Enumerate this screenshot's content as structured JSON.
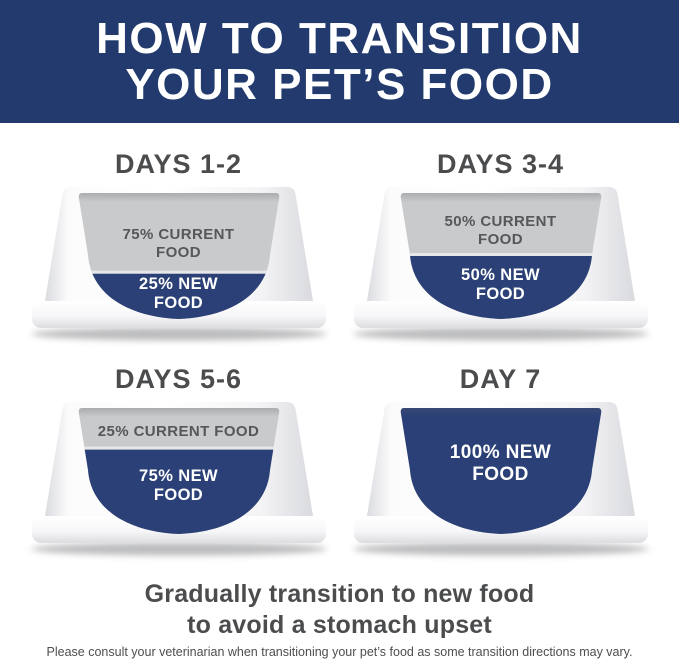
{
  "header": {
    "title_line1": "HOW TO TRANSITION",
    "title_line2": "YOUR PET’S FOOD"
  },
  "bowls": [
    {
      "title": "DAYS 1-2",
      "current_food_pct": 75,
      "new_food_pct": 25,
      "current_label": "75% CURRENT FOOD",
      "new_label": "25% NEW FOOD"
    },
    {
      "title": "DAYS 3-4",
      "current_food_pct": 50,
      "new_food_pct": 50,
      "current_label": "50% CURRENT FOOD",
      "new_label": "50% NEW FOOD"
    },
    {
      "title": "DAYS 5-6",
      "current_food_pct": 25,
      "new_food_pct": 75,
      "current_label": "25% CURRENT FOOD",
      "new_label": "75% NEW FOOD"
    },
    {
      "title": "DAY 7",
      "new_food_pct": 100,
      "new_label": "100% NEW FOOD"
    }
  ],
  "tagline": {
    "line1": "Gradually transition to new food",
    "line2": "to avoid a stomach upset"
  },
  "footnote": "Please consult your veterinarian when transitioning your pet’s food as some transition directions may vary.",
  "colors": {
    "header_background": "#223A6D",
    "header_text": "#FFFFFF",
    "new_food_blue": "#2A4076",
    "current_food_gray": "#C9CACC",
    "heading_text": "#4B4C4E"
  }
}
